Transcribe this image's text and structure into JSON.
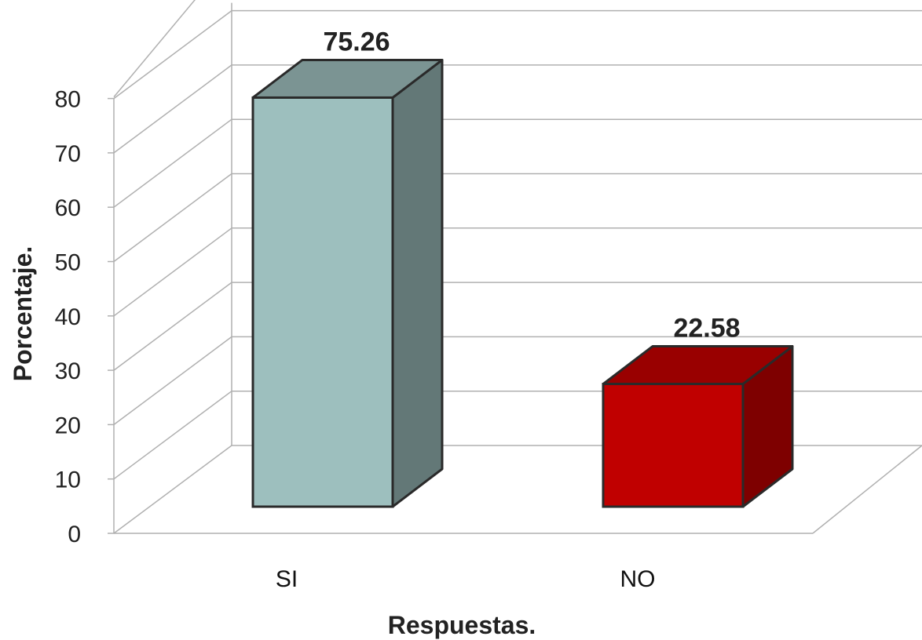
{
  "chart_data": {
    "type": "bar",
    "style": "3d-column",
    "categories": [
      "SI",
      "NO"
    ],
    "values": [
      75.26,
      22.58
    ],
    "data_labels": [
      "75.26",
      "22.58"
    ],
    "xlabel": "Respuestas.",
    "ylabel": "Porcentaje.",
    "ylim": [
      0,
      80
    ],
    "yticks": [
      0,
      10,
      20,
      30,
      40,
      50,
      60,
      70,
      80
    ],
    "grid": true,
    "legend": "none",
    "colors": {
      "SI": {
        "front": "#9dbfbe",
        "side": "#637877",
        "top": "#7b9493"
      },
      "NO": {
        "front": "#c00000",
        "side": "#7e0000",
        "top": "#990000"
      },
      "grid": "#b0b0b0",
      "edge": "#2a2a2a"
    }
  }
}
